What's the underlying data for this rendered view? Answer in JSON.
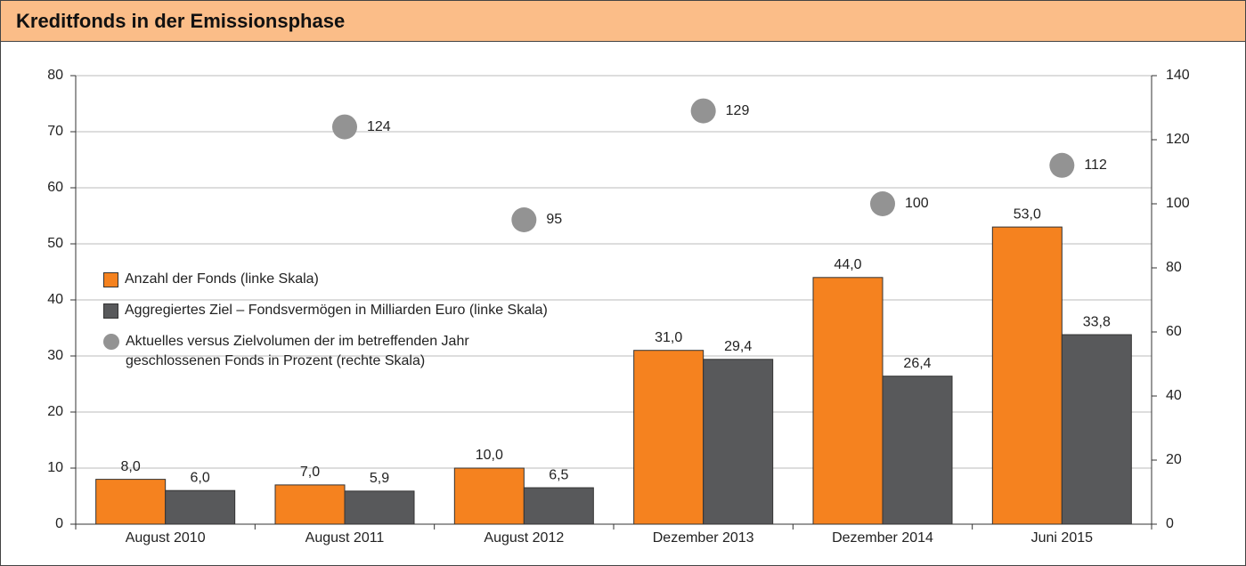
{
  "chart_data": {
    "type": "bar",
    "title": "Kreditfonds in der Emissionsphase",
    "categories": [
      "August 2010",
      "August 2011",
      "August 2012",
      "Dezember 2013",
      "Dezember 2014",
      "Juni 2015"
    ],
    "series": [
      {
        "name": "Anzahl der Fonds (linke Skala)",
        "color": "#f5821f",
        "values": [
          8,
          7,
          10,
          31,
          44,
          53
        ],
        "value_labels": [
          "8,0",
          "7,0",
          "10,0",
          "31,0",
          "44,0",
          "53,0"
        ]
      },
      {
        "name": "Aggregiertes Ziel – Fondsvermögen in Milliarden Euro (linke Skala)",
        "color": "#58595b",
        "values": [
          6,
          5.9,
          6.5,
          29.4,
          26.4,
          33.8
        ],
        "value_labels": [
          "6,0",
          "5,9",
          "6,5",
          "29,4",
          "26,4",
          "33,8"
        ]
      },
      {
        "name": "Aktuelles versus Zielvolumen der im betreffenden Jahr geschlossenen Fonds in Prozent (rechte Skala)",
        "color": "#939393",
        "type": "scatter",
        "axis": "y2",
        "values": [
          null,
          124,
          95,
          129,
          100,
          112
        ]
      }
    ],
    "ylim": [
      0,
      80
    ],
    "yticks": [
      0,
      10,
      20,
      30,
      40,
      50,
      60,
      70,
      80
    ],
    "y2lim": [
      0,
      140
    ],
    "y2ticks": [
      0,
      20,
      40,
      60,
      80,
      100,
      120,
      140
    ],
    "grid": true,
    "legend": "left"
  }
}
